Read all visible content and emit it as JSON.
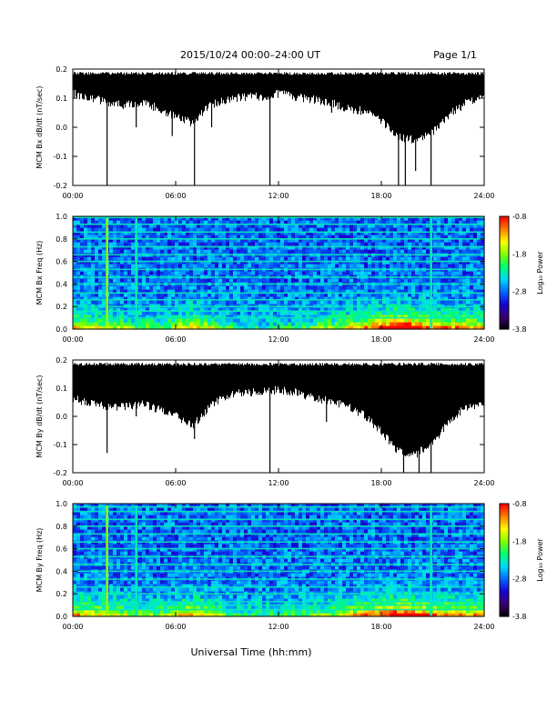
{
  "header": {
    "title": "2015/10/24  00:00–24:00 UT",
    "page": "Page 1/1"
  },
  "footer": {
    "xlabel": "Universal Time (hh:mm)"
  },
  "colors": {
    "trace": "#000000",
    "colormap": [
      "#000000",
      "#3a0070",
      "#1a00d0",
      "#0066ff",
      "#00d8ff",
      "#00ff70",
      "#80ff00",
      "#ffff00",
      "#ff8000",
      "#ff0000"
    ]
  },
  "chart_data": [
    {
      "type": "line",
      "ylabel": "MCM Bx dB/dt (nT/sec)",
      "xlim": [
        0,
        24
      ],
      "ylim": [
        -0.2,
        0.2
      ],
      "x_ticks": [
        "00:00",
        "06:00",
        "12:00",
        "18:00",
        "24:00"
      ],
      "y_ticks": [
        "0.2",
        "0.1",
        "0.0",
        "-0.1",
        "-0.2"
      ],
      "series": [
        {
          "hours": [
            0,
            1,
            2,
            3,
            4,
            5,
            6,
            7,
            8,
            9,
            10,
            11,
            12,
            13,
            14,
            15,
            16,
            17,
            18,
            19,
            20,
            21,
            22,
            23,
            24
          ],
          "upper": [
            0.19,
            0.19,
            0.19,
            0.19,
            0.19,
            0.19,
            0.19,
            0.19,
            0.19,
            0.19,
            0.19,
            0.19,
            0.19,
            0.19,
            0.19,
            0.19,
            0.19,
            0.19,
            0.19,
            0.19,
            0.19,
            0.19,
            0.19,
            0.19,
            0.19
          ],
          "lower": [
            0.13,
            0.12,
            0.1,
            0.09,
            0.1,
            0.08,
            0.05,
            0.03,
            0.09,
            0.11,
            0.12,
            0.12,
            0.13,
            0.12,
            0.11,
            0.1,
            0.08,
            0.07,
            0.04,
            -0.02,
            -0.03,
            0.0,
            0.06,
            0.1,
            0.12
          ]
        }
      ],
      "spikes": [
        {
          "hour": 2.0,
          "min": -0.2
        },
        {
          "hour": 3.7,
          "min": 0.0
        },
        {
          "hour": 5.8,
          "min": -0.03
        },
        {
          "hour": 7.1,
          "min": -0.2
        },
        {
          "hour": 8.1,
          "min": 0.0
        },
        {
          "hour": 11.5,
          "min": -0.2
        },
        {
          "hour": 15.1,
          "min": 0.05
        },
        {
          "hour": 19.0,
          "min": -0.2
        },
        {
          "hour": 19.4,
          "min": -0.2
        },
        {
          "hour": 20.0,
          "min": -0.15
        },
        {
          "hour": 20.9,
          "min": -0.2
        }
      ]
    },
    {
      "type": "heatmap",
      "ylabel": "MCM Bx Freq (Hz)",
      "xlim": [
        0,
        24
      ],
      "ylim": [
        0,
        1.0
      ],
      "x_ticks": [
        "00:00",
        "06:00",
        "12:00",
        "18:00",
        "24:00"
      ],
      "y_ticks": [
        "1.0",
        "0.8",
        "0.6",
        "0.4",
        "0.2",
        "0.0"
      ],
      "colorbar": {
        "label": "Log₁₀ Power",
        "range": [
          -3.8,
          -0.8
        ],
        "ticks": [
          "-0.8",
          "-1.8",
          "-2.8",
          "-3.8"
        ]
      },
      "harmonic_lines_hz": [
        0.1,
        0.16,
        0.2,
        0.26,
        0.32,
        0.4,
        0.46,
        0.53,
        0.6,
        0.66,
        0.73,
        0.8,
        0.86,
        0.93,
        0.99
      ],
      "activity_hours": [
        0,
        1,
        2,
        3,
        4,
        5,
        6,
        7,
        8,
        9,
        10,
        11,
        12,
        13,
        14,
        15,
        16,
        17,
        18,
        19,
        20,
        21,
        22,
        23,
        24
      ],
      "activity_level": [
        0.5,
        0.45,
        0.4,
        0.35,
        0.3,
        0.3,
        0.35,
        0.6,
        0.4,
        0.25,
        0.2,
        0.2,
        0.2,
        0.25,
        0.3,
        0.35,
        0.45,
        0.55,
        0.65,
        0.85,
        0.75,
        0.6,
        0.6,
        0.55,
        0.5
      ],
      "broadband_events": [
        {
          "hour": 2.0,
          "level": 0.95
        },
        {
          "hour": 3.7,
          "level": 0.7
        },
        {
          "hour": 20.9,
          "level": 0.7
        }
      ]
    },
    {
      "type": "line",
      "ylabel": "MCM By dB/dt (nT/sec)",
      "xlim": [
        0,
        24
      ],
      "ylim": [
        -0.2,
        0.2
      ],
      "x_ticks": [
        "00:00",
        "06:00",
        "12:00",
        "18:00",
        "24:00"
      ],
      "y_ticks": [
        "0.2",
        "0.1",
        "0.0",
        "-0.1",
        "-0.2"
      ],
      "series": [
        {
          "hours": [
            0,
            1,
            2,
            3,
            4,
            5,
            6,
            7,
            8,
            9,
            10,
            11,
            12,
            13,
            14,
            15,
            16,
            17,
            18,
            19,
            20,
            21,
            22,
            23,
            24
          ],
          "upper": [
            0.19,
            0.19,
            0.19,
            0.19,
            0.19,
            0.19,
            0.19,
            0.19,
            0.19,
            0.19,
            0.19,
            0.19,
            0.19,
            0.19,
            0.19,
            0.19,
            0.19,
            0.19,
            0.19,
            0.19,
            0.19,
            0.19,
            0.19,
            0.19,
            0.19
          ],
          "lower": [
            0.08,
            0.06,
            0.05,
            0.05,
            0.06,
            0.04,
            0.02,
            -0.02,
            0.05,
            0.09,
            0.1,
            0.1,
            0.11,
            0.1,
            0.08,
            0.07,
            0.05,
            0.02,
            -0.04,
            -0.11,
            -0.12,
            -0.08,
            0.0,
            0.05,
            0.06
          ]
        }
      ],
      "spikes": [
        {
          "hour": 2.0,
          "min": -0.13
        },
        {
          "hour": 3.7,
          "min": 0.0
        },
        {
          "hour": 7.1,
          "min": -0.08
        },
        {
          "hour": 11.5,
          "min": -0.2
        },
        {
          "hour": 14.8,
          "min": -0.02
        },
        {
          "hour": 19.3,
          "min": -0.2
        },
        {
          "hour": 20.2,
          "min": -0.2
        },
        {
          "hour": 20.9,
          "min": -0.2
        }
      ]
    },
    {
      "type": "heatmap",
      "ylabel": "MCM By Freq (Hz)",
      "xlim": [
        0,
        24
      ],
      "ylim": [
        0,
        1.0
      ],
      "x_ticks": [
        "00:00",
        "06:00",
        "12:00",
        "18:00",
        "24:00"
      ],
      "y_ticks": [
        "1.0",
        "0.8",
        "0.6",
        "0.4",
        "0.2",
        "0.0"
      ],
      "colorbar": {
        "label": "Log₁₀ Power",
        "range": [
          -3.8,
          -0.8
        ],
        "ticks": [
          "-0.8",
          "-1.8",
          "-2.8",
          "-3.8"
        ]
      },
      "harmonic_lines_hz": [
        0.06,
        0.1,
        0.13,
        0.2,
        0.26,
        0.33,
        0.4,
        0.46,
        0.53,
        0.6,
        0.66,
        0.73,
        0.8,
        0.86,
        0.93,
        0.97
      ],
      "activity_hours": [
        0,
        1,
        2,
        3,
        4,
        5,
        6,
        7,
        8,
        9,
        10,
        11,
        12,
        13,
        14,
        15,
        16,
        17,
        18,
        19,
        20,
        21,
        22,
        23,
        24
      ],
      "activity_level": [
        0.55,
        0.5,
        0.45,
        0.4,
        0.35,
        0.35,
        0.4,
        0.6,
        0.45,
        0.3,
        0.25,
        0.25,
        0.25,
        0.3,
        0.3,
        0.35,
        0.45,
        0.55,
        0.65,
        0.85,
        0.75,
        0.6,
        0.6,
        0.55,
        0.5
      ],
      "broadband_events": [
        {
          "hour": 2.0,
          "level": 0.95
        },
        {
          "hour": 3.7,
          "level": 0.7
        },
        {
          "hour": 20.9,
          "level": 0.7
        }
      ]
    }
  ]
}
